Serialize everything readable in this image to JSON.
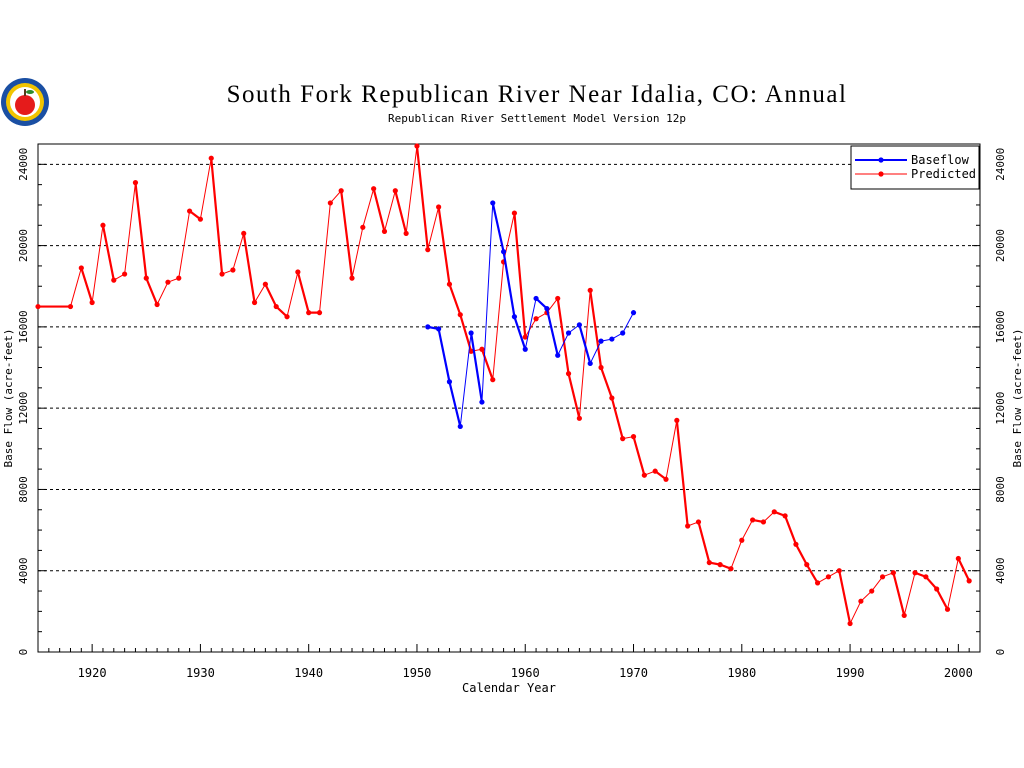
{
  "chart_data": {
    "type": "line",
    "title": "South Fork Republican River Near Idalia, CO: Annual",
    "subtitle": "Republican River Settlement Model Version 12p",
    "xlabel": "Calendar Year",
    "ylabel_left": "Base Flow (acre-feet)",
    "ylabel_right": "Base Flow (acre-feet)",
    "xlim": [
      1915,
      2002
    ],
    "ylim": [
      0,
      25000
    ],
    "x_ticks": [
      1920,
      1930,
      1940,
      1950,
      1960,
      1970,
      1980,
      1990,
      2000
    ],
    "y_ticks": [
      0,
      4000,
      8000,
      12000,
      16000,
      20000,
      24000
    ],
    "grid": "horizontal dashed at y ticks",
    "legend_position": "top-right",
    "colors": {
      "Baseflow": "#0000ff",
      "Predicted": "#ff0000"
    },
    "series": [
      {
        "name": "Predicted",
        "color": "#ff0000",
        "points": [
          [
            1915,
            17000
          ],
          [
            1918,
            17000
          ],
          [
            1919,
            18900
          ],
          [
            1920,
            17200
          ],
          [
            1921,
            21000
          ],
          [
            1922,
            18300
          ],
          [
            1923,
            18600
          ],
          [
            1924,
            23100
          ],
          [
            1925,
            18400
          ],
          [
            1926,
            17100
          ],
          [
            1927,
            18200
          ],
          [
            1928,
            18400
          ],
          [
            1929,
            21700
          ],
          [
            1930,
            21300
          ],
          [
            1931,
            24300
          ],
          [
            1932,
            18600
          ],
          [
            1933,
            18800
          ],
          [
            1934,
            20600
          ],
          [
            1935,
            17200
          ],
          [
            1936,
            18100
          ],
          [
            1937,
            17000
          ],
          [
            1938,
            16500
          ],
          [
            1939,
            18700
          ],
          [
            1940,
            16700
          ],
          [
            1941,
            16700
          ],
          [
            1942,
            22100
          ],
          [
            1943,
            22700
          ],
          [
            1944,
            18400
          ],
          [
            1945,
            20900
          ],
          [
            1946,
            22800
          ],
          [
            1947,
            20700
          ],
          [
            1948,
            22700
          ],
          [
            1949,
            20600
          ],
          [
            1950,
            24900
          ],
          [
            1951,
            19800
          ],
          [
            1952,
            21900
          ],
          [
            1953,
            18100
          ],
          [
            1954,
            16600
          ],
          [
            1955,
            14800
          ],
          [
            1956,
            14900
          ],
          [
            1957,
            13400
          ],
          [
            1958,
            19200
          ],
          [
            1959,
            21600
          ],
          [
            1960,
            15500
          ],
          [
            1961,
            16400
          ],
          [
            1962,
            16700
          ],
          [
            1963,
            17400
          ],
          [
            1964,
            13700
          ],
          [
            1965,
            11500
          ],
          [
            1966,
            17800
          ],
          [
            1967,
            14000
          ],
          [
            1968,
            12500
          ],
          [
            1969,
            10500
          ],
          [
            1970,
            10600
          ],
          [
            1971,
            8700
          ],
          [
            1972,
            8900
          ],
          [
            1973,
            8500
          ],
          [
            1974,
            11400
          ],
          [
            1975,
            6200
          ],
          [
            1976,
            6400
          ],
          [
            1977,
            4400
          ],
          [
            1978,
            4300
          ],
          [
            1979,
            4100
          ],
          [
            1980,
            5500
          ],
          [
            1981,
            6500
          ],
          [
            1982,
            6400
          ],
          [
            1983,
            6900
          ],
          [
            1984,
            6700
          ],
          [
            1985,
            5300
          ],
          [
            1986,
            4300
          ],
          [
            1987,
            3400
          ],
          [
            1988,
            3700
          ],
          [
            1989,
            4000
          ],
          [
            1990,
            1400
          ],
          [
            1991,
            2500
          ],
          [
            1992,
            3000
          ],
          [
            1993,
            3700
          ],
          [
            1994,
            3900
          ],
          [
            1995,
            1800
          ],
          [
            1996,
            3900
          ],
          [
            1997,
            3700
          ],
          [
            1998,
            3100
          ],
          [
            1999,
            2100
          ],
          [
            2000,
            4600
          ],
          [
            2001,
            3500
          ]
        ]
      },
      {
        "name": "Baseflow",
        "color": "#0000ff",
        "points": [
          [
            1951,
            16000
          ],
          [
            1952,
            15900
          ],
          [
            1953,
            13300
          ],
          [
            1954,
            11100
          ],
          [
            1955,
            15700
          ],
          [
            1956,
            12300
          ],
          [
            1957,
            22100
          ],
          [
            1958,
            19700
          ],
          [
            1959,
            16500
          ],
          [
            1960,
            14900
          ],
          [
            1961,
            17400
          ],
          [
            1962,
            16900
          ],
          [
            1963,
            14600
          ],
          [
            1964,
            15700
          ],
          [
            1965,
            16100
          ],
          [
            1966,
            14200
          ],
          [
            1967,
            15300
          ],
          [
            1968,
            15400
          ],
          [
            1969,
            15700
          ],
          [
            1970,
            16700
          ]
        ]
      }
    ]
  },
  "logo": {
    "name": "apple-logo-icon",
    "colors": [
      "#1a4fa3",
      "#f2c400",
      "#e51b1b",
      "#2e8b2e"
    ]
  }
}
